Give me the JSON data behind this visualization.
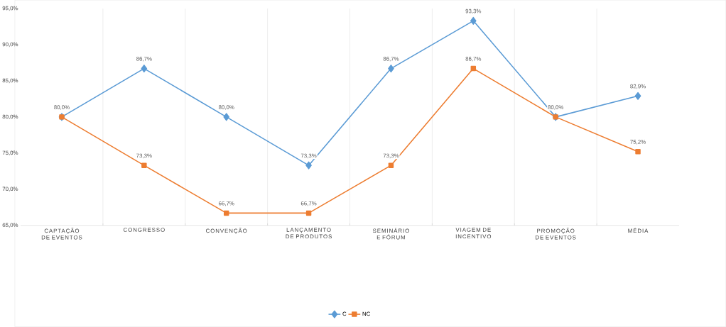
{
  "chart_data": {
    "type": "line",
    "categories": [
      "CAPTAÇÃO DE EVENTOS",
      "CONGRESSO",
      "CONVENÇÃO",
      "LANÇAMENTO DE PRODUTOS",
      "SEMINÁRIO E FÓRUM",
      "VIAGEM DE INCENTIVO",
      "PROMOÇÃO DE EVENTOS",
      "MÉDIA"
    ],
    "series": [
      {
        "name": "C",
        "color": "#5b9bd5",
        "marker": "diamond",
        "values": [
          80.0,
          86.7,
          80.0,
          73.3,
          86.7,
          93.3,
          80.0,
          82.9
        ],
        "value_labels": [
          "80,0%",
          "86,7%",
          "80,0%",
          "73,3%",
          "86,7%",
          "93,3%",
          null,
          "82,9%"
        ]
      },
      {
        "name": "NC",
        "color": "#ed7d31",
        "marker": "square",
        "values": [
          80.0,
          73.3,
          66.7,
          66.7,
          73.3,
          86.7,
          80.0,
          75.2
        ],
        "value_labels": [
          null,
          "73,3%",
          "66,7%",
          "66,7%",
          "73,3%",
          "86,7%",
          "80,0%",
          "75,2%"
        ]
      }
    ],
    "ylim": [
      65,
      95
    ],
    "yticks": [
      {
        "value": 65,
        "label": "65,0%"
      },
      {
        "value": 70,
        "label": "70,0%"
      },
      {
        "value": 75,
        "label": "75,0%"
      },
      {
        "value": 80,
        "label": "80,0%"
      },
      {
        "value": 85,
        "label": "85,0%"
      },
      {
        "value": 90,
        "label": "90,0%"
      },
      {
        "value": 95,
        "label": "95,0%"
      }
    ],
    "grid": "x",
    "legend": "bottom",
    "line_style": "solid"
  }
}
